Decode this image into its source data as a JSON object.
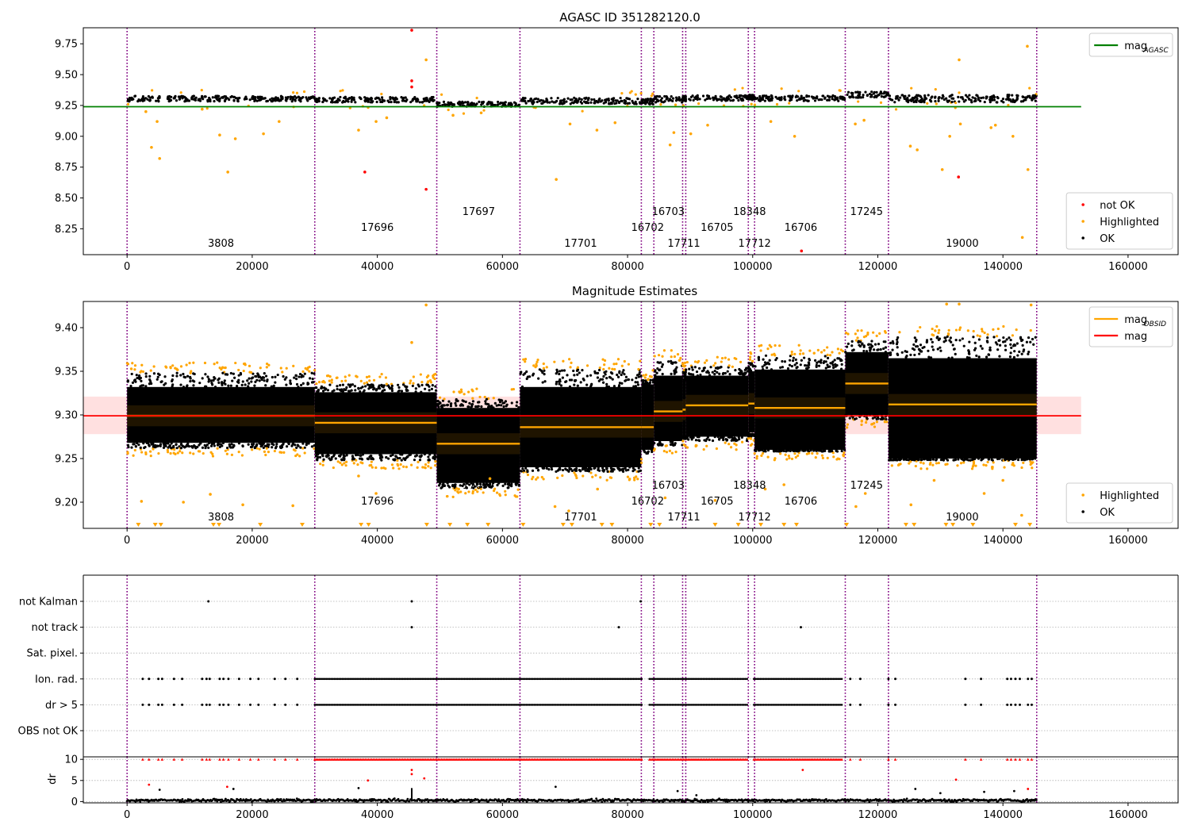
{
  "figure": {
    "title": "AGASC ID 351282120.0"
  },
  "chart_data": [
    {
      "type": "scatter",
      "title": "",
      "xlabel": "",
      "ylabel": "",
      "xlim": [
        -7000,
        168000
      ],
      "ylim": [
        8.04,
        9.88
      ],
      "yticks": [
        8.25,
        8.5,
        8.75,
        9.0,
        9.25,
        9.5,
        9.75
      ],
      "ytick_labels": [
        "8.25",
        "8.50",
        "8.75",
        "9.00",
        "9.25",
        "9.50",
        "9.75"
      ],
      "xticks": [
        0,
        20000,
        40000,
        60000,
        80000,
        100000,
        120000,
        140000,
        160000
      ],
      "xtick_labels": [
        "0",
        "20000",
        "40000",
        "60000",
        "80000",
        "100000",
        "120000",
        "140000",
        "160000"
      ],
      "grid": false,
      "legend_upper": {
        "placement": "top-right",
        "entries": [
          {
            "label": "mag",
            "sub": "AGASC",
            "color": "#008000"
          }
        ]
      },
      "legend_lower": {
        "placement": "bottom-right",
        "entries": [
          {
            "label": "not OK",
            "color": "#ff0000"
          },
          {
            "label": "Highlighted",
            "color": "#ffa500"
          },
          {
            "label": "OK",
            "color": "#000000"
          }
        ]
      },
      "agasc_mag": {
        "value": 9.24,
        "x_range": [
          -7000,
          152500
        ],
        "color": "#008000"
      },
      "observation_bands": [
        {
          "x0": 0,
          "x1": 30000,
          "mag": 9.305,
          "spread": 0.022
        },
        {
          "x0": 30000,
          "x1": 49500,
          "mag": 9.297,
          "spread": 0.022
        },
        {
          "x0": 49500,
          "x1": 62800,
          "mag": 9.26,
          "spread": 0.02
        },
        {
          "x0": 62800,
          "x1": 82200,
          "mag": 9.287,
          "spread": 0.025
        },
        {
          "x0": 82200,
          "x1": 84200,
          "mag": 9.282,
          "spread": 0.022
        },
        {
          "x0": 84200,
          "x1": 88800,
          "mag": 9.3,
          "spread": 0.025
        },
        {
          "x0": 88800,
          "x1": 89300,
          "mag": 9.305,
          "spread": 0.02
        },
        {
          "x0": 89300,
          "x1": 99300,
          "mag": 9.31,
          "spread": 0.022
        },
        {
          "x0": 99300,
          "x1": 100300,
          "mag": 9.315,
          "spread": 0.02
        },
        {
          "x0": 100300,
          "x1": 114800,
          "mag": 9.308,
          "spread": 0.022
        },
        {
          "x0": 114800,
          "x1": 121700,
          "mag": 9.338,
          "spread": 0.025
        },
        {
          "x0": 121700,
          "x1": 145400,
          "mag": 9.305,
          "spread": 0.03
        }
      ],
      "highlighted_points": [
        [
          3000,
          9.2
        ],
        [
          3900,
          8.91
        ],
        [
          5200,
          8.82
        ],
        [
          4800,
          9.12
        ],
        [
          12000,
          9.22
        ],
        [
          14800,
          9.01
        ],
        [
          16100,
          8.71
        ],
        [
          17300,
          8.98
        ],
        [
          21800,
          9.02
        ],
        [
          24300,
          9.12
        ],
        [
          37000,
          9.05
        ],
        [
          39800,
          9.12
        ],
        [
          41500,
          9.15
        ],
        [
          47800,
          9.62
        ],
        [
          52100,
          9.17
        ],
        [
          56600,
          9.19
        ],
        [
          68600,
          8.65
        ],
        [
          70800,
          9.1
        ],
        [
          75100,
          9.05
        ],
        [
          78000,
          9.11
        ],
        [
          86800,
          8.93
        ],
        [
          87400,
          9.03
        ],
        [
          90100,
          9.02
        ],
        [
          92800,
          9.09
        ],
        [
          102900,
          9.12
        ],
        [
          106700,
          9.0
        ],
        [
          116400,
          9.1
        ],
        [
          117800,
          9.13
        ],
        [
          125200,
          8.92
        ],
        [
          126300,
          8.89
        ],
        [
          130300,
          8.73
        ],
        [
          131500,
          9.0
        ],
        [
          133000,
          9.62
        ],
        [
          133200,
          9.1
        ],
        [
          138100,
          9.07
        ],
        [
          138800,
          9.09
        ],
        [
          141600,
          9.0
        ],
        [
          143100,
          8.18
        ],
        [
          143900,
          9.73
        ],
        [
          144000,
          8.73
        ]
      ],
      "not_ok_points": [
        [
          38000,
          8.71
        ],
        [
          45500,
          9.86
        ],
        [
          45500,
          9.45
        ],
        [
          45500,
          9.4
        ],
        [
          47800,
          8.57
        ],
        [
          107800,
          8.07
        ],
        [
          132900,
          8.67
        ]
      ],
      "obsid_labels": [
        {
          "text": "3808",
          "x": 15000,
          "row": 0
        },
        {
          "text": "17696",
          "x": 40000,
          "row": 1
        },
        {
          "text": "17697",
          "x": 56200,
          "row": 2
        },
        {
          "text": "17701",
          "x": 72500,
          "row": 0
        },
        {
          "text": "16702",
          "x": 83200,
          "row": 1
        },
        {
          "text": "16703",
          "x": 86500,
          "row": 2
        },
        {
          "text": "17711",
          "x": 89000,
          "row": 0
        },
        {
          "text": "16705",
          "x": 94300,
          "row": 1
        },
        {
          "text": "18348",
          "x": 99500,
          "row": 2
        },
        {
          "text": "17712",
          "x": 100300,
          "row": 0
        },
        {
          "text": "16706",
          "x": 107700,
          "row": 1
        },
        {
          "text": "17245",
          "x": 118200,
          "row": 2
        },
        {
          "text": "19000",
          "x": 133500,
          "row": 0
        }
      ]
    },
    {
      "type": "scatter",
      "title": "Magnitude Estimates",
      "xlabel": "",
      "ylabel": "",
      "xlim": [
        -7000,
        168000
      ],
      "ylim": [
        9.17,
        9.43
      ],
      "yticks": [
        9.2,
        9.25,
        9.3,
        9.35,
        9.4
      ],
      "ytick_labels": [
        "9.20",
        "9.25",
        "9.30",
        "9.35",
        "9.40"
      ],
      "xticks": [
        0,
        20000,
        40000,
        60000,
        80000,
        100000,
        120000,
        140000,
        160000
      ],
      "xtick_labels": [
        "0",
        "20000",
        "40000",
        "60000",
        "80000",
        "100000",
        "120000",
        "140000",
        "160000"
      ],
      "grid": false,
      "legend_upper": {
        "placement": "top-right",
        "entries": [
          {
            "label": "mag",
            "sub": "OBSID",
            "color": "#ffa500"
          },
          {
            "label": "mag",
            "sub": "",
            "color": "#ff0000"
          }
        ]
      },
      "legend_lower": {
        "placement": "bottom-right",
        "entries": [
          {
            "label": "Highlighted",
            "color": "#ffa500"
          },
          {
            "label": "OK",
            "color": "#000000"
          }
        ]
      },
      "mean_mag": {
        "value": 9.299,
        "band": [
          9.278,
          9.321
        ],
        "x_range": [
          -7000,
          152500
        ],
        "color": "#ff0000"
      },
      "observations": [
        {
          "obsid": "3808",
          "x0": 0,
          "x1": 30000,
          "mag": 9.299,
          "top": 9.332,
          "bottom": 9.268,
          "clip_top": 9.348,
          "clip_bottom": 9.262
        },
        {
          "obsid": "17696",
          "x0": 30000,
          "x1": 49500,
          "mag": 9.291,
          "top": 9.326,
          "bottom": 9.255,
          "clip_top": 9.335,
          "clip_bottom": 9.248
        },
        {
          "obsid": "17697",
          "x0": 49500,
          "x1": 62800,
          "mag": 9.267,
          "top": 9.308,
          "bottom": 9.222,
          "clip_top": 9.318,
          "clip_bottom": 9.216
        },
        {
          "obsid": "17701",
          "x0": 62800,
          "x1": 82200,
          "mag": 9.286,
          "top": 9.332,
          "bottom": 9.24,
          "clip_top": 9.352,
          "clip_bottom": 9.235
        },
        {
          "obsid": "16702",
          "x0": 82200,
          "x1": 84200,
          "mag": 9.286,
          "top": 9.335,
          "bottom": 9.26,
          "clip_top": 9.34,
          "clip_bottom": 9.255
        },
        {
          "obsid": "16703",
          "x0": 84200,
          "x1": 88800,
          "mag": 9.304,
          "top": 9.345,
          "bottom": 9.27,
          "clip_top": 9.362,
          "clip_bottom": 9.265
        },
        {
          "obsid": "17711",
          "x0": 88800,
          "x1": 89300,
          "mag": 9.306,
          "top": 9.34,
          "bottom": 9.275,
          "clip_top": 9.35,
          "clip_bottom": 9.27
        },
        {
          "obsid": "16705",
          "x0": 89300,
          "x1": 99300,
          "mag": 9.311,
          "top": 9.345,
          "bottom": 9.275,
          "clip_top": 9.355,
          "clip_bottom": 9.27
        },
        {
          "obsid": "18348",
          "x0": 99300,
          "x1": 100300,
          "mag": 9.313,
          "top": 9.35,
          "bottom": 9.28,
          "clip_top": 9.36,
          "clip_bottom": 9.275
        },
        {
          "obsid": "16706",
          "x0": 100300,
          "x1": 114800,
          "mag": 9.308,
          "top": 9.352,
          "bottom": 9.26,
          "clip_top": 9.368,
          "clip_bottom": 9.258
        },
        {
          "obsid": "17245",
          "x0": 114800,
          "x1": 121700,
          "mag": 9.336,
          "top": 9.372,
          "bottom": 9.3,
          "clip_top": 9.385,
          "clip_bottom": 9.295
        },
        {
          "obsid": "19000",
          "x0": 121700,
          "x1": 145400,
          "mag": 9.312,
          "top": 9.365,
          "bottom": 9.25,
          "clip_top": 9.39,
          "clip_bottom": 9.248
        }
      ],
      "highlighted_points": [
        [
          2300,
          9.201
        ],
        [
          9000,
          9.2
        ],
        [
          13300,
          9.209
        ],
        [
          18500,
          9.197
        ],
        [
          26500,
          9.196
        ],
        [
          37000,
          9.23
        ],
        [
          39800,
          9.21
        ],
        [
          45500,
          9.383
        ],
        [
          47800,
          9.426
        ],
        [
          53000,
          9.215
        ],
        [
          58000,
          9.227
        ],
        [
          68400,
          9.195
        ],
        [
          70600,
          9.19
        ],
        [
          75200,
          9.215
        ],
        [
          86000,
          9.205
        ],
        [
          94000,
          9.202
        ],
        [
          102000,
          9.215
        ],
        [
          105000,
          9.22
        ],
        [
          116500,
          9.195
        ],
        [
          118000,
          9.21
        ],
        [
          125300,
          9.197
        ],
        [
          129000,
          9.225
        ],
        [
          131000,
          9.427
        ],
        [
          133000,
          9.427
        ],
        [
          137000,
          9.21
        ],
        [
          140000,
          9.225
        ],
        [
          143000,
          9.185
        ],
        [
          144500,
          9.426
        ]
      ],
      "off_scale_x": [
        1800,
        4500,
        5400,
        13800,
        14700,
        21300,
        28000,
        37400,
        38600,
        47900,
        51600,
        54400,
        57700,
        63300,
        69700,
        71100,
        75900,
        77500,
        83700,
        85100,
        94000,
        97700,
        101300,
        105000,
        107000,
        115000,
        124500,
        125800,
        130900,
        132000,
        135200,
        142000,
        144300
      ],
      "obsid_labels": [
        {
          "text": "3808",
          "x": 15000,
          "row": 0
        },
        {
          "text": "17696",
          "x": 40000,
          "row": 1
        },
        {
          "text": "17697",
          "x": 56200,
          "row": 2
        },
        {
          "text": "17701",
          "x": 72500,
          "row": 0
        },
        {
          "text": "16702",
          "x": 83200,
          "row": 1
        },
        {
          "text": "16703",
          "x": 86500,
          "row": 2
        },
        {
          "text": "17711",
          "x": 89000,
          "row": 0
        },
        {
          "text": "16705",
          "x": 94300,
          "row": 1
        },
        {
          "text": "18348",
          "x": 99500,
          "row": 2
        },
        {
          "text": "17712",
          "x": 100300,
          "row": 0
        },
        {
          "text": "16706",
          "x": 107700,
          "row": 1
        },
        {
          "text": "17245",
          "x": 118200,
          "row": 2
        },
        {
          "text": "19000",
          "x": 133500,
          "row": 0
        }
      ]
    },
    {
      "type": "scatter",
      "title": "",
      "xlabel": "",
      "ylabel": "",
      "xlim": [
        -7000,
        168000
      ],
      "flag_labels": [
        "not Kalman",
        "not track",
        "Sat. pixel.",
        "Ion. rad.",
        "dr > 5",
        "OBS not OK"
      ],
      "grid": true,
      "flag_segments": {
        "Ion. rad.": [
          [
            30000,
            82500
          ],
          [
            83500,
            99200
          ],
          [
            100200,
            114300
          ]
        ],
        "dr > 5": [
          [
            30000,
            82500
          ],
          [
            83500,
            99200
          ],
          [
            100200,
            114300
          ]
        ]
      },
      "flag_points": {
        "not Kalman": [
          13000,
          45500,
          82100
        ],
        "not track": [
          45500,
          78600,
          107700
        ],
        "Ion. rad.": [
          2500,
          3500,
          5000,
          5600,
          7500,
          8800,
          12000,
          12700,
          13200,
          14800,
          15400,
          16200,
          17900,
          19700,
          21000,
          23600,
          25300,
          27200,
          115600,
          117200,
          121700,
          122800,
          134000,
          136500,
          140700,
          141300,
          142000,
          142700,
          144000,
          144600
        ],
        "dr > 5": [
          2500,
          3500,
          5000,
          5600,
          7500,
          8800,
          12000,
          12700,
          13200,
          14800,
          15400,
          16200,
          17900,
          19700,
          21000,
          23600,
          25300,
          27200,
          115600,
          117200,
          121700,
          122800,
          134000,
          136500,
          140700,
          141300,
          142000,
          142700,
          144000,
          144600
        ]
      }
    },
    {
      "type": "scatter",
      "title": "",
      "xlabel": "",
      "ylabel": "dr",
      "xlim": [
        -7000,
        168000
      ],
      "ylim": [
        -0.3,
        10.6
      ],
      "yticks": [
        0,
        5,
        10
      ],
      "ytick_labels": [
        "0",
        "5",
        "10"
      ],
      "xticks": [
        0,
        20000,
        40000,
        60000,
        80000,
        100000,
        120000,
        140000,
        160000
      ],
      "xtick_labels": [
        "0",
        "20000",
        "40000",
        "60000",
        "80000",
        "100000",
        "120000",
        "140000",
        "160000"
      ],
      "grid": true,
      "baseline_dr": 0.3,
      "spike": {
        "x": 45500,
        "dr": 3.2
      },
      "capped_segments": [
        [
          30000,
          82500
        ],
        [
          83500,
          99200
        ],
        [
          100200,
          114300
        ]
      ],
      "capped_points": [
        2500,
        3500,
        5000,
        5600,
        7500,
        8800,
        12000,
        12700,
        13200,
        14800,
        15400,
        16200,
        17900,
        19700,
        21000,
        23600,
        25300,
        27200,
        115600,
        117200,
        121700,
        122800,
        134000,
        136500,
        140700,
        141300,
        142000,
        142700,
        144000,
        144600
      ],
      "red_points": [
        [
          3500,
          4.0
        ],
        [
          16000,
          3.5
        ],
        [
          38500,
          5.0
        ],
        [
          45500,
          7.5
        ],
        [
          45500,
          6.5
        ],
        [
          47500,
          5.5
        ],
        [
          108000,
          7.5
        ],
        [
          132500,
          5.2
        ],
        [
          144000,
          3.0
        ]
      ],
      "black_points": [
        [
          5200,
          2.8
        ],
        [
          17000,
          3.0
        ],
        [
          37000,
          3.2
        ],
        [
          68500,
          3.5
        ],
        [
          88000,
          2.5
        ],
        [
          91000,
          1.5
        ],
        [
          126000,
          3.0
        ],
        [
          130000,
          2.0
        ],
        [
          137000,
          2.3
        ],
        [
          141800,
          2.5
        ]
      ]
    }
  ],
  "obsid_boundaries": [
    0,
    30000,
    49500,
    62800,
    82200,
    84200,
    88800,
    89300,
    99300,
    100300,
    114800,
    121700,
    145400
  ]
}
